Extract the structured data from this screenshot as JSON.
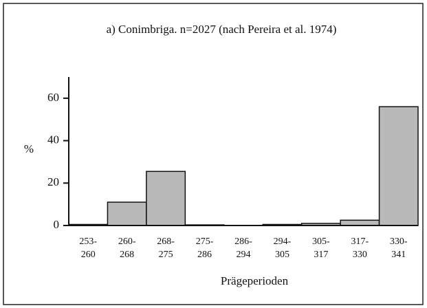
{
  "chart_data": {
    "type": "bar",
    "title": "a) Conimbriga. n=2027 (nach Pereira et al. 1974)",
    "x_label": "Prägeperioden",
    "y_label": "%",
    "categories": [
      "253-\n260",
      "260-\n268",
      "268-\n275",
      "275-\n286",
      "286-\n294",
      "294-\n305",
      "305-\n317",
      "317-\n330",
      "330-\n341"
    ],
    "values": [
      0.5,
      11,
      25.5,
      0.3,
      0,
      0.5,
      1,
      2.5,
      56
    ],
    "color": "#b9b9b9",
    "ylim": [
      0,
      70
    ],
    "yticks": [
      0,
      20,
      40,
      60
    ]
  }
}
